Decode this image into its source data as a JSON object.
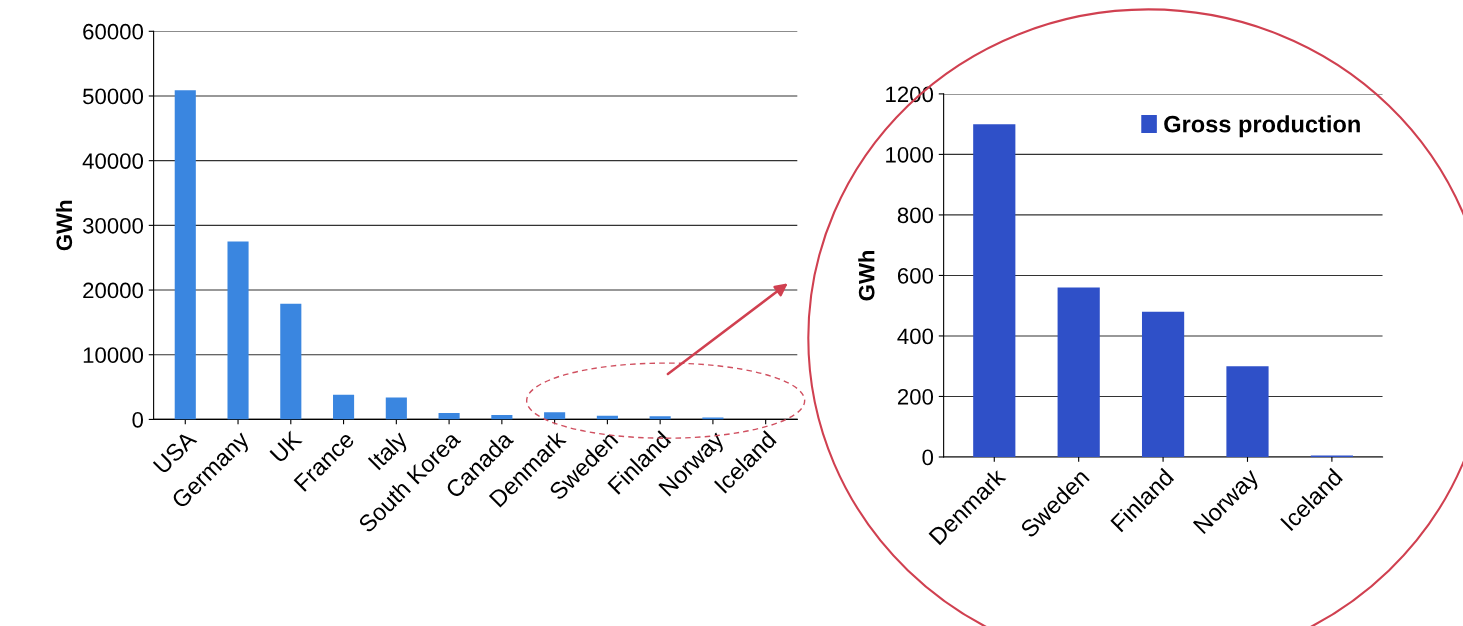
{
  "chart_data": [
    {
      "type": "bar",
      "ylabel": "GWh",
      "categories": [
        "USA",
        "Germany",
        "UK",
        "France",
        "Italy",
        "South Korea",
        "Canada",
        "Denmark",
        "Sweden",
        "Finland",
        "Norway",
        "Iceland"
      ],
      "series": [
        {
          "color": "#3a86e0",
          "values": [
            50900,
            27500,
            17900,
            3800,
            3400,
            1000,
            700,
            1100,
            560,
            480,
            300,
            5
          ]
        }
      ],
      "ylim": [
        0,
        60000
      ],
      "yticks": [
        0,
        10000,
        20000,
        30000,
        40000,
        50000,
        60000
      ],
      "grid": "y",
      "legend": false
    },
    {
      "type": "bar",
      "ylabel": "GWh",
      "categories": [
        "Denmark",
        "Sweden",
        "Finland",
        "Norway",
        "Iceland"
      ],
      "series": [
        {
          "name": "Gross production",
          "color": "#2f50c8",
          "values": [
            1100,
            560,
            480,
            300,
            5
          ]
        }
      ],
      "ylim": [
        0,
        1200
      ],
      "yticks": [
        0,
        200,
        400,
        600,
        800,
        1000,
        1200
      ],
      "grid": "y",
      "legend": "top right"
    }
  ]
}
